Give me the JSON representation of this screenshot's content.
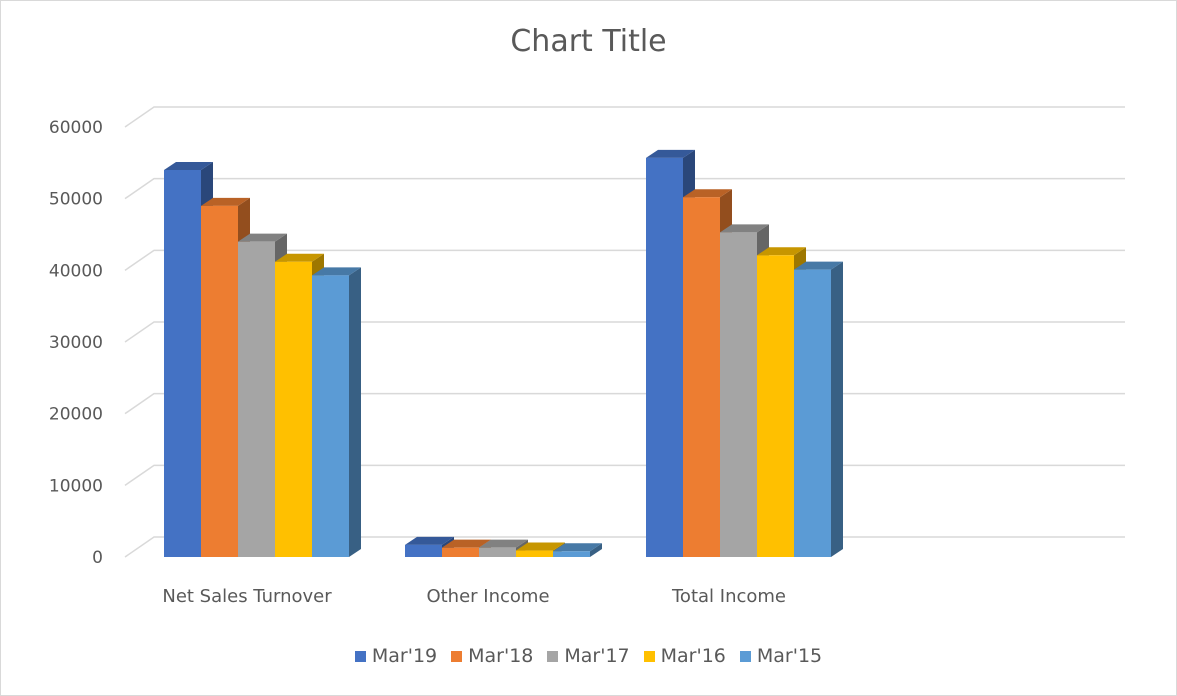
{
  "chart_data": {
    "type": "bar",
    "title": "Chart Title",
    "categories": [
      "Net Sales Turnover",
      "Other Income",
      "Total Income"
    ],
    "series": [
      {
        "name": "Mar'19",
        "color": "#4472c4",
        "values": [
          54000,
          1700,
          55700
        ]
      },
      {
        "name": "Mar'18",
        "color": "#ed7d31",
        "values": [
          49000,
          1300,
          50200
        ]
      },
      {
        "name": "Mar'17",
        "color": "#a5a5a5",
        "values": [
          44000,
          1300,
          45300
        ]
      },
      {
        "name": "Mar'16",
        "color": "#ffc000",
        "values": [
          41200,
          900,
          42100
        ]
      },
      {
        "name": "Mar'15",
        "color": "#5b9bd5",
        "values": [
          39300,
          800,
          40100
        ]
      }
    ],
    "yticks": [
      0,
      10000,
      20000,
      30000,
      40000,
      50000,
      60000
    ],
    "ylim": [
      0,
      60000
    ],
    "grid": true,
    "legend": "bottom",
    "xlabel": "",
    "ylabel": ""
  }
}
